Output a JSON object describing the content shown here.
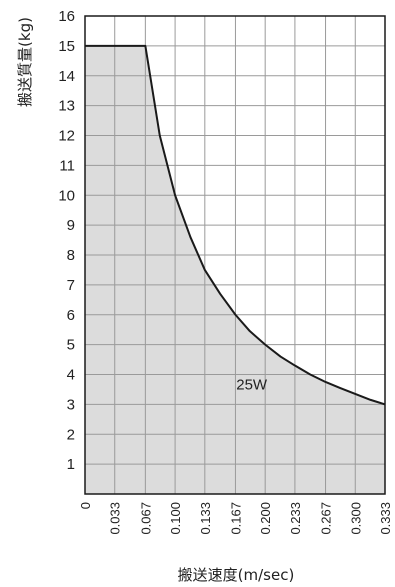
{
  "chart_data": {
    "type": "area",
    "title": "",
    "xlabel": "搬送速度(m/sec)",
    "ylabel": "搬送質量(kg)",
    "xlim": [
      0,
      0.333
    ],
    "ylim": [
      0,
      16
    ],
    "x_ticks": [
      0,
      0.033,
      0.067,
      0.1,
      0.133,
      0.167,
      0.2,
      0.233,
      0.267,
      0.3,
      0.333
    ],
    "x_tick_labels": [
      "0",
      "0.033",
      "0.067",
      "0.100",
      "0.133",
      "0.167",
      "0.200",
      "0.233",
      "0.267",
      "0.300",
      "0.333"
    ],
    "y_ticks": [
      1,
      2,
      3,
      4,
      5,
      6,
      7,
      8,
      9,
      10,
      11,
      12,
      13,
      14,
      15,
      16
    ],
    "y_tick_labels": [
      "1",
      "2",
      "3",
      "4",
      "5",
      "6",
      "7",
      "8",
      "9",
      "10",
      "11",
      "12",
      "13",
      "14",
      "15",
      "16"
    ],
    "grid": true,
    "series": [
      {
        "name": "",
        "x": [
          0,
          0.067,
          0.083,
          0.1,
          0.117,
          0.133,
          0.15,
          0.167,
          0.183,
          0.2,
          0.217,
          0.233,
          0.25,
          0.267,
          0.283,
          0.3,
          0.317,
          0.333
        ],
        "y": [
          15,
          15,
          12,
          10,
          8.6,
          7.5,
          6.7,
          6,
          5.45,
          5,
          4.6,
          4.3,
          4,
          3.75,
          3.55,
          3.35,
          3.15,
          3
        ]
      }
    ],
    "annotations": [
      {
        "text": "25W",
        "x": 0.185,
        "y": 3.5
      }
    ],
    "colors": {
      "fill": "#dcdcdc",
      "line": "#1a1a1a",
      "grid": "#9a9a9a",
      "frame": "#1a1a1a"
    }
  }
}
